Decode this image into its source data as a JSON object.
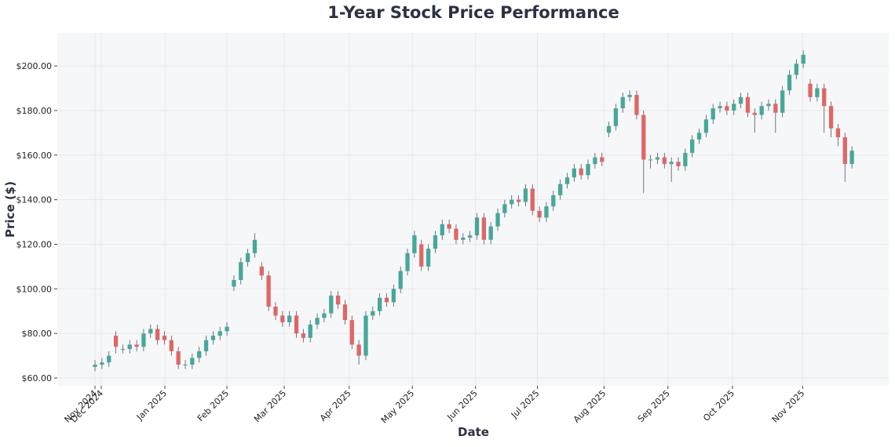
{
  "chart_data": {
    "type": "candlestick",
    "title": "1-Year Stock Price Performance",
    "x_label": "Date",
    "y_label": "Price ($)",
    "up_color": "#46a89a",
    "down_color": "#e06666",
    "grid": true,
    "xlim": [
      -5.43,
      114.3
    ],
    "xticks": [
      {
        "value": 0,
        "label": "Nov 2024"
      },
      {
        "value": 0.9,
        "label": "Dec 2024"
      },
      {
        "value": 10.06,
        "label": "Jan 2025"
      },
      {
        "value": 19.0,
        "label": "Feb 2025"
      },
      {
        "value": 27.25,
        "label": "Mar 2025"
      },
      {
        "value": 36.6,
        "label": "Apr 2025"
      },
      {
        "value": 45.7,
        "label": "May 2025"
      },
      {
        "value": 54.8,
        "label": "Jun 2025"
      },
      {
        "value": 63.7,
        "label": "Jul 2025"
      },
      {
        "value": 73.3,
        "label": "Aug 2025"
      },
      {
        "value": 82.5,
        "label": "Sep 2025"
      },
      {
        "value": 91.8,
        "label": "Oct 2025"
      },
      {
        "value": 101.9,
        "label": "Nov 2025"
      }
    ],
    "ylim": [
      56.5,
      214.8
    ],
    "yticks": [
      {
        "value": 60,
        "label": "$60.00"
      },
      {
        "value": 80,
        "label": "$80.00"
      },
      {
        "value": 100,
        "label": "$100.00"
      },
      {
        "value": 120,
        "label": "$120.00"
      },
      {
        "value": 140,
        "label": "$140.00"
      },
      {
        "value": 160,
        "label": "$160.00"
      },
      {
        "value": 180,
        "label": "$180.00"
      },
      {
        "value": 200,
        "label": "$200.00"
      }
    ],
    "open": [
      65,
      66,
      67,
      79,
      73,
      73,
      75,
      74,
      80,
      82,
      79,
      77,
      72,
      66,
      66,
      69,
      72,
      77,
      79,
      81,
      101,
      104,
      112,
      116,
      110,
      106,
      92,
      88,
      85,
      88,
      80,
      78,
      84,
      87,
      89,
      97,
      93,
      86,
      75,
      70,
      88,
      90,
      96,
      94,
      100,
      108,
      116,
      120,
      110,
      118,
      124,
      129,
      127,
      122,
      123,
      124,
      132,
      122,
      128,
      134,
      138,
      140,
      139,
      145,
      135,
      132,
      137,
      142,
      147,
      150,
      154,
      151,
      156,
      159,
      170,
      173,
      181,
      186,
      187,
      178,
      158,
      158,
      159,
      156,
      157,
      155,
      161,
      167,
      170,
      176,
      181,
      182,
      180,
      183,
      186,
      179,
      178,
      182,
      183,
      179,
      189,
      196,
      201,
      192,
      186,
      190,
      182,
      172,
      168,
      156
    ],
    "high": [
      68,
      69,
      72,
      81,
      75,
      77,
      77,
      82,
      84,
      84,
      81,
      79,
      74,
      68,
      71,
      74,
      79,
      81,
      83,
      85,
      106,
      114,
      118,
      125,
      112,
      108,
      94,
      90,
      90,
      90,
      82,
      86,
      89,
      91,
      99,
      99,
      95,
      88,
      77,
      90,
      92,
      98,
      98,
      102,
      110,
      118,
      126,
      122,
      120,
      126,
      131,
      131,
      129,
      125,
      126,
      134,
      134,
      130,
      136,
      140,
      142,
      142,
      147,
      147,
      137,
      139,
      144,
      149,
      152,
      156,
      156,
      158,
      161,
      161,
      175,
      183,
      188,
      189,
      189,
      180,
      160,
      161,
      161,
      159,
      159,
      163,
      169,
      172,
      178,
      183,
      184,
      184,
      185,
      188,
      188,
      181,
      184,
      185,
      185,
      191,
      198,
      203,
      207,
      194,
      192,
      192,
      184,
      174,
      170,
      164
    ],
    "low": [
      63,
      64,
      65,
      71,
      71,
      71,
      72,
      72,
      78,
      75,
      75,
      70,
      64,
      64,
      64,
      67,
      70,
      75,
      77,
      79,
      99,
      102,
      110,
      114,
      104,
      90,
      86,
      83,
      83,
      78,
      76,
      76,
      82,
      85,
      87,
      91,
      84,
      73,
      66,
      68,
      86,
      88,
      92,
      92,
      98,
      106,
      114,
      108,
      108,
      116,
      122,
      125,
      120,
      120,
      121,
      122,
      120,
      120,
      126,
      132,
      136,
      137,
      137,
      133,
      130,
      130,
      135,
      140,
      145,
      148,
      149,
      149,
      154,
      155,
      168,
      171,
      179,
      184,
      176,
      143,
      154,
      156,
      154,
      148,
      153,
      153,
      159,
      165,
      168,
      174,
      179,
      178,
      178,
      181,
      177,
      170,
      176,
      180,
      170,
      177,
      187,
      194,
      199,
      184,
      184,
      170,
      168,
      164,
      148,
      154
    ],
    "close": [
      66,
      67,
      70,
      74,
      73,
      75,
      74,
      80,
      82,
      77,
      77,
      72,
      66,
      66,
      69,
      72,
      77,
      79,
      81,
      83,
      104,
      112,
      116,
      122,
      106,
      92,
      88,
      85,
      88,
      80,
      78,
      84,
      87,
      89,
      97,
      93,
      86,
      75,
      70,
      88,
      90,
      96,
      94,
      100,
      108,
      116,
      124,
      110,
      118,
      124,
      129,
      127,
      122,
      123,
      124,
      132,
      122,
      128,
      134,
      138,
      140,
      139,
      145,
      135,
      132,
      137,
      142,
      147,
      150,
      154,
      151,
      156,
      159,
      157,
      173,
      181,
      186,
      187,
      178,
      158,
      158,
      159,
      156,
      157,
      155,
      161,
      167,
      170,
      176,
      181,
      182,
      180,
      183,
      186,
      179,
      178,
      182,
      183,
      179,
      189,
      196,
      201,
      205,
      186,
      190,
      182,
      172,
      168,
      156,
      162
    ]
  }
}
